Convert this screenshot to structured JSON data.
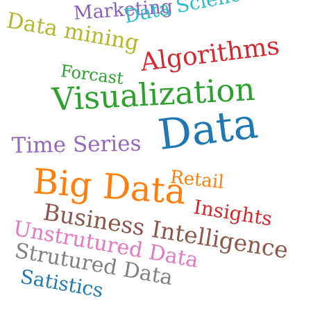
{
  "words": [
    {
      "id": "marketing",
      "text": "Marketing",
      "color": "#8b5fbf"
    },
    {
      "id": "datascience",
      "text": "Data Science",
      "color": "#2bbcc8"
    },
    {
      "id": "datamining",
      "text": "Data mining",
      "color": "#b5b62a"
    },
    {
      "id": "algorithms",
      "text": "Algorithms",
      "color": "#d3292e"
    },
    {
      "id": "forcast",
      "text": "Forcast",
      "color": "#2ca02c"
    },
    {
      "id": "visualization",
      "text": "Visualization",
      "color": "#2ca02c"
    },
    {
      "id": "timeseries",
      "text": "Time Series",
      "color": "#9467bd"
    },
    {
      "id": "data",
      "text": "Data",
      "color": "#1f77b4"
    },
    {
      "id": "retail",
      "text": "Retail",
      "color": "#ff7f0e"
    },
    {
      "id": "bigdata",
      "text": "Big Data",
      "color": "#ff7f0e"
    },
    {
      "id": "insights",
      "text": "Insights",
      "color": "#d62728"
    },
    {
      "id": "business",
      "text": "Business Intelligence",
      "color": "#8c564b"
    },
    {
      "id": "unstrutured",
      "text": "Unstrutured Data",
      "color": "#e377c2"
    },
    {
      "id": "strutured",
      "text": "Strutured Data",
      "color": "#7f7f7f"
    },
    {
      "id": "satistics",
      "text": "Satistics",
      "color": "#1f77b4"
    }
  ]
}
